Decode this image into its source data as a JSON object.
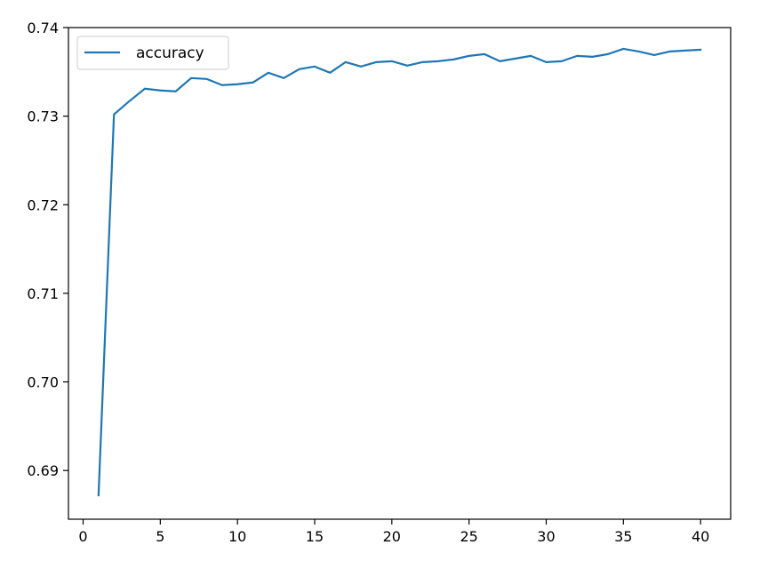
{
  "chart_data": {
    "type": "line",
    "title": "",
    "xlabel": "",
    "ylabel": "",
    "xlim": [
      -0.95,
      41.95
    ],
    "ylim": [
      0.6845,
      0.74
    ],
    "x_ticks": [
      0,
      5,
      10,
      15,
      20,
      25,
      30,
      35,
      40
    ],
    "x_tick_labels": [
      "0",
      "5",
      "10",
      "15",
      "20",
      "25",
      "30",
      "35",
      "40"
    ],
    "y_ticks": [
      0.69,
      0.7,
      0.71,
      0.72,
      0.73,
      0.74
    ],
    "y_tick_labels": [
      "0.69",
      "0.70",
      "0.71",
      "0.72",
      "0.73",
      "0.74"
    ],
    "grid": false,
    "legend": {
      "position": "top-left",
      "entries": [
        "accuracy"
      ]
    },
    "series": [
      {
        "name": "accuracy",
        "color": "#1f77b4",
        "x": [
          1,
          2,
          3,
          4,
          5,
          6,
          7,
          8,
          9,
          10,
          11,
          12,
          13,
          14,
          15,
          16,
          17,
          18,
          19,
          20,
          21,
          22,
          23,
          24,
          25,
          26,
          27,
          28,
          29,
          30,
          31,
          32,
          33,
          34,
          35,
          36,
          37,
          38,
          39,
          40
        ],
        "values": [
          0.6872,
          0.7302,
          0.7317,
          0.7331,
          0.7329,
          0.7328,
          0.7343,
          0.7342,
          0.7335,
          0.7336,
          0.7338,
          0.7349,
          0.7343,
          0.7353,
          0.7356,
          0.7349,
          0.7361,
          0.7356,
          0.7361,
          0.7362,
          0.7357,
          0.7361,
          0.7362,
          0.7364,
          0.7368,
          0.737,
          0.7362,
          0.7365,
          0.7368,
          0.7361,
          0.7362,
          0.7368,
          0.7367,
          0.737,
          0.7376,
          0.7373,
          0.7369,
          0.7373,
          0.7374,
          0.7375
        ]
      }
    ]
  }
}
